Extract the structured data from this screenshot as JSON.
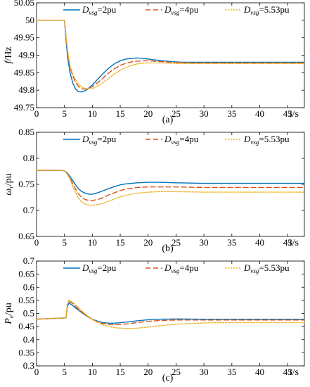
{
  "chart_data": [
    {
      "type": "line",
      "panel_label": "(a)",
      "ylabel": "f/Hz",
      "xlabel": "t/s",
      "xlim": [
        0,
        48
      ],
      "ylim": [
        49.75,
        50.05
      ],
      "xticks": [
        0,
        5,
        10,
        15,
        20,
        25,
        30,
        35,
        40,
        45
      ],
      "yticks": [
        "49.75",
        "49.8",
        "49.85",
        "49.9",
        "49.95",
        "50",
        "50.05"
      ],
      "grid": false,
      "legend_placement": "top",
      "series": [
        {
          "name": "Dvsg=2pu",
          "name_main": "D",
          "name_sub": "vsg",
          "name_tail": "=2pu",
          "color": "#0072BD",
          "style": "solid",
          "x": [
            0,
            4.5,
            5,
            5.3,
            5.6,
            6,
            6.5,
            7,
            7.5,
            8,
            8.5,
            9,
            10,
            11,
            12,
            13,
            14,
            15,
            16,
            17,
            18,
            19,
            20,
            21,
            22,
            24,
            26,
            28,
            30,
            35,
            40,
            45,
            48
          ],
          "y": [
            50.0,
            50.0,
            50.0,
            49.94,
            49.89,
            49.85,
            49.82,
            49.803,
            49.796,
            49.795,
            49.797,
            49.801,
            49.815,
            49.832,
            49.849,
            49.864,
            49.876,
            49.884,
            49.889,
            49.891,
            49.892,
            49.891,
            49.889,
            49.887,
            49.885,
            49.882,
            49.88,
            49.88,
            49.88,
            49.88,
            49.88,
            49.88,
            49.88
          ]
        },
        {
          "name": "Dvsg=4pu",
          "name_main": "D",
          "name_sub": "vsg",
          "name_tail": "=4pu",
          "color": "#D95319",
          "style": "dashed",
          "x": [
            0,
            4.5,
            5,
            5.3,
            5.6,
            6,
            6.5,
            7,
            7.5,
            8,
            8.5,
            9,
            10,
            11,
            12,
            13,
            14,
            15,
            16,
            17,
            18,
            19,
            20,
            21,
            22,
            24,
            26,
            28,
            30,
            35,
            40,
            45,
            48
          ],
          "y": [
            50.0,
            50.0,
            50.0,
            49.95,
            49.9,
            49.865,
            49.84,
            49.822,
            49.811,
            49.805,
            49.803,
            49.804,
            49.81,
            49.822,
            49.836,
            49.85,
            49.862,
            49.871,
            49.877,
            49.881,
            49.883,
            49.884,
            49.884,
            49.883,
            49.882,
            49.88,
            49.879,
            49.878,
            49.878,
            49.878,
            49.878,
            49.878,
            49.878
          ]
        },
        {
          "name": "Dvsg=5.53pu",
          "name_main": "D",
          "name_sub": "vsg",
          "name_tail": "=5.53pu",
          "color": "#EDB120",
          "style": "dotted",
          "x": [
            0,
            4.5,
            5,
            5.3,
            5.6,
            6,
            6.5,
            7,
            7.5,
            8,
            8.5,
            9,
            10,
            11,
            12,
            13,
            14,
            15,
            16,
            17,
            18,
            19,
            20,
            21,
            22,
            24,
            26,
            28,
            30,
            35,
            40,
            45,
            48
          ],
          "y": [
            50.0,
            50.0,
            50.0,
            49.95,
            49.91,
            49.87,
            49.845,
            49.83,
            49.818,
            49.81,
            49.806,
            49.804,
            49.805,
            49.812,
            49.823,
            49.835,
            49.847,
            49.857,
            49.865,
            49.871,
            49.875,
            49.877,
            49.878,
            49.878,
            49.878,
            49.877,
            49.876,
            49.876,
            49.876,
            49.876,
            49.876,
            49.876,
            49.876
          ]
        }
      ]
    },
    {
      "type": "line",
      "panel_label": "(b)",
      "ylabel": "ωr/pu",
      "ylabel_main": "ω",
      "ylabel_sub": "r",
      "ylabel_tail": "/pu",
      "xlabel": "t/s",
      "xlim": [
        0,
        48
      ],
      "ylim": [
        0.65,
        0.85
      ],
      "xticks": [
        0,
        5,
        10,
        15,
        20,
        25,
        30,
        35,
        40,
        45
      ],
      "yticks": [
        "0.65",
        "0.7",
        "0.75",
        "0.8",
        "0.85"
      ],
      "grid": false,
      "legend_placement": "top",
      "series": [
        {
          "name": "Dvsg=2pu",
          "name_main": "D",
          "name_sub": "vsg",
          "name_tail": "=2pu",
          "color": "#0072BD",
          "style": "solid",
          "x": [
            0,
            4.5,
            5,
            5.5,
            6,
            6.5,
            7,
            7.5,
            8,
            8.5,
            9,
            9.5,
            10,
            11,
            12,
            13,
            14,
            15,
            16,
            18,
            20,
            22,
            25,
            30,
            35,
            40,
            45,
            48
          ],
          "y": [
            0.777,
            0.777,
            0.776,
            0.772,
            0.765,
            0.757,
            0.749,
            0.742,
            0.737,
            0.734,
            0.732,
            0.731,
            0.731,
            0.734,
            0.738,
            0.742,
            0.746,
            0.749,
            0.751,
            0.753,
            0.754,
            0.754,
            0.753,
            0.752,
            0.752,
            0.752,
            0.752,
            0.752
          ]
        },
        {
          "name": "Dvsg=4pu",
          "name_main": "D",
          "name_sub": "vsg",
          "name_tail": "=4pu",
          "color": "#D95319",
          "style": "dashed",
          "x": [
            0,
            4.5,
            5,
            5.5,
            6,
            6.5,
            7,
            7.5,
            8,
            8.5,
            9,
            9.5,
            10,
            11,
            12,
            13,
            14,
            15,
            16,
            18,
            20,
            22,
            25,
            30,
            35,
            40,
            45,
            48
          ],
          "y": [
            0.777,
            0.777,
            0.776,
            0.771,
            0.762,
            0.751,
            0.741,
            0.732,
            0.726,
            0.722,
            0.72,
            0.719,
            0.719,
            0.721,
            0.725,
            0.73,
            0.734,
            0.738,
            0.741,
            0.744,
            0.745,
            0.745,
            0.745,
            0.744,
            0.744,
            0.744,
            0.744,
            0.744
          ]
        },
        {
          "name": "Dvsg=5.53pu",
          "name_main": "D",
          "name_sub": "vsg",
          "name_tail": "=5.53pu",
          "color": "#EDB120",
          "style": "dotted",
          "x": [
            0,
            4.5,
            5,
            5.5,
            6,
            6.5,
            7,
            7.5,
            8,
            8.5,
            9,
            9.5,
            10,
            11,
            12,
            13,
            14,
            15,
            16,
            18,
            20,
            22,
            25,
            30,
            35,
            40,
            45,
            48
          ],
          "y": [
            0.777,
            0.777,
            0.776,
            0.77,
            0.759,
            0.746,
            0.734,
            0.724,
            0.717,
            0.713,
            0.711,
            0.71,
            0.71,
            0.711,
            0.714,
            0.718,
            0.722,
            0.726,
            0.729,
            0.733,
            0.735,
            0.736,
            0.736,
            0.735,
            0.735,
            0.735,
            0.735,
            0.735
          ]
        }
      ]
    },
    {
      "type": "line",
      "panel_label": "(c)",
      "ylabel": "Pe/pu",
      "ylabel_main": "P",
      "ylabel_sub": "e",
      "ylabel_tail": "/pu",
      "xlabel": "t/s",
      "xlim": [
        0,
        48
      ],
      "ylim": [
        0.3,
        0.7
      ],
      "xticks": [
        0,
        5,
        10,
        15,
        20,
        25,
        30,
        35,
        40,
        45
      ],
      "yticks": [
        "0.3",
        "0.35",
        "0.4",
        "0.45",
        "0.5",
        "0.55",
        "0.6",
        "0.65",
        "0.7"
      ],
      "grid": false,
      "legend_placement": "top",
      "series": [
        {
          "name": "Dvsg=2pu",
          "name_main": "D",
          "name_sub": "vsg",
          "name_tail": "=2pu",
          "color": "#0072BD",
          "style": "solid",
          "x": [
            0,
            1,
            2,
            3,
            4,
            5.3,
            5.5,
            5.8,
            6,
            6.5,
            7,
            8,
            9,
            10,
            11,
            12,
            13,
            14,
            15,
            16,
            18,
            20,
            22,
            25,
            30,
            35,
            40,
            45,
            48
          ],
          "y": [
            0.478,
            0.479,
            0.48,
            0.481,
            0.482,
            0.483,
            0.525,
            0.54,
            0.537,
            0.53,
            0.521,
            0.505,
            0.49,
            0.478,
            0.47,
            0.465,
            0.463,
            0.463,
            0.465,
            0.467,
            0.472,
            0.476,
            0.478,
            0.479,
            0.478,
            0.478,
            0.478,
            0.478,
            0.478
          ]
        },
        {
          "name": "Dvsg=4pu",
          "name_main": "D",
          "name_sub": "vsg",
          "name_tail": "=4pu",
          "color": "#D95319",
          "style": "dashed",
          "x": [
            0,
            1,
            2,
            3,
            4,
            5.3,
            5.5,
            5.8,
            6,
            6.5,
            7,
            8,
            9,
            10,
            11,
            12,
            13,
            14,
            15,
            16,
            18,
            20,
            22,
            25,
            30,
            35,
            40,
            45,
            48
          ],
          "y": [
            0.478,
            0.479,
            0.48,
            0.481,
            0.482,
            0.483,
            0.53,
            0.546,
            0.544,
            0.537,
            0.527,
            0.508,
            0.491,
            0.477,
            0.467,
            0.461,
            0.458,
            0.457,
            0.458,
            0.46,
            0.465,
            0.47,
            0.473,
            0.475,
            0.475,
            0.475,
            0.475,
            0.475,
            0.475
          ]
        },
        {
          "name": "Dvsg=5.53pu",
          "name_main": "D",
          "name_sub": "vsg",
          "name_tail": "=5.53pu",
          "color": "#EDB120",
          "style": "dotted",
          "x": [
            0,
            1,
            2,
            3,
            4,
            5.3,
            5.5,
            5.8,
            6,
            6.5,
            7,
            8,
            9,
            10,
            11,
            12,
            13,
            14,
            15,
            16,
            17,
            18,
            20,
            22,
            25,
            30,
            35,
            40,
            45,
            48
          ],
          "y": [
            0.478,
            0.479,
            0.48,
            0.481,
            0.482,
            0.483,
            0.535,
            0.552,
            0.55,
            0.542,
            0.532,
            0.512,
            0.493,
            0.478,
            0.465,
            0.456,
            0.45,
            0.446,
            0.444,
            0.443,
            0.443,
            0.444,
            0.448,
            0.453,
            0.459,
            0.464,
            0.465,
            0.465,
            0.465,
            0.465
          ]
        }
      ]
    }
  ]
}
